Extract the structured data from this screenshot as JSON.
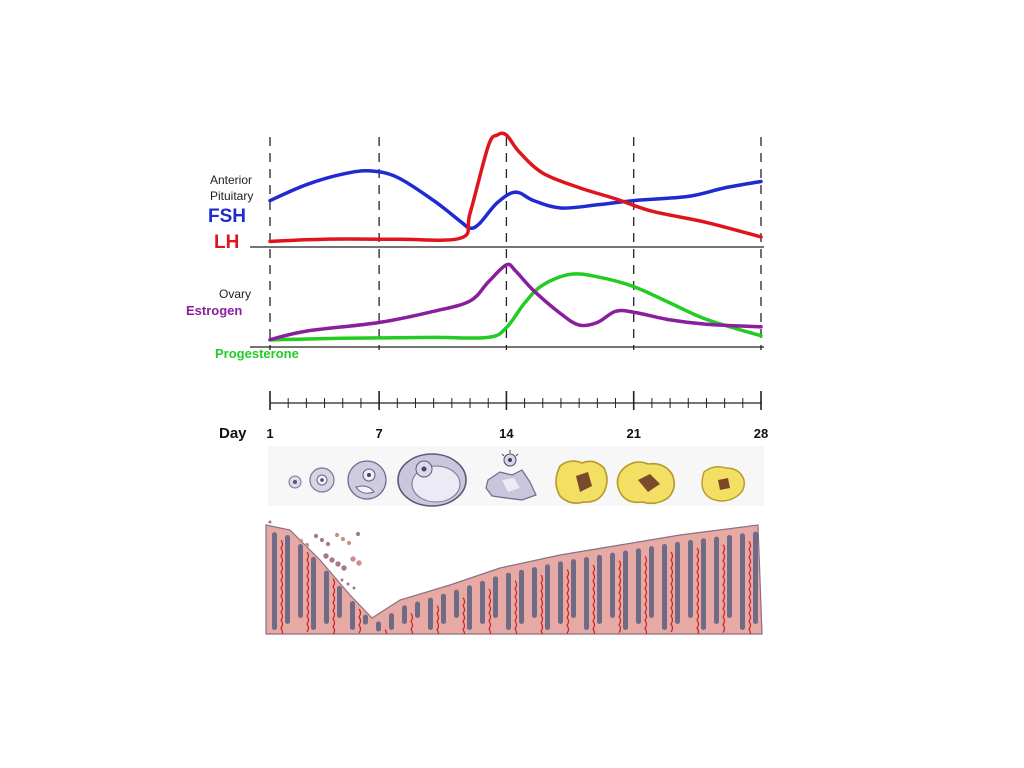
{
  "labels": {
    "pituitary_line1": "Anterior",
    "pituitary_line2": "Pituitary",
    "fsh": "FSH",
    "lh": "LH",
    "ovary": "Ovary",
    "estrogen": "Estrogen",
    "progesterone": "Progesterone",
    "day": "Day"
  },
  "colors": {
    "fsh": "#1f2bd0",
    "lh": "#e0141c",
    "estrogen": "#8a1f9e",
    "progesterone": "#22cc22",
    "follicle": "#cfcbe0",
    "corpus_luteum": "#f2df63",
    "endometrium": "#e6a9a3"
  },
  "days": {
    "ticks": [
      1,
      7,
      14,
      21,
      28
    ],
    "tick_labels": [
      "1",
      "7",
      "14",
      "21",
      "28"
    ],
    "range": [
      1,
      28
    ]
  },
  "hormones": {
    "fsh": [
      [
        1,
        0.4
      ],
      [
        3,
        0.55
      ],
      [
        5,
        0.65
      ],
      [
        6.5,
        0.68
      ],
      [
        8,
        0.62
      ],
      [
        10,
        0.4
      ],
      [
        11.5,
        0.2
      ],
      [
        12,
        0.14
      ],
      [
        12.5,
        0.18
      ],
      [
        13.5,
        0.38
      ],
      [
        14.5,
        0.48
      ],
      [
        15.5,
        0.4
      ],
      [
        17,
        0.33
      ],
      [
        19,
        0.36
      ],
      [
        21,
        0.4
      ],
      [
        24,
        0.44
      ],
      [
        26,
        0.52
      ],
      [
        28,
        0.58
      ]
    ],
    "lh": [
      [
        1,
        0.05
      ],
      [
        4,
        0.07
      ],
      [
        8,
        0.07
      ],
      [
        11.5,
        0.08
      ],
      [
        12,
        0.3
      ],
      [
        13,
        0.9
      ],
      [
        13.5,
        1.0
      ],
      [
        14,
        1.0
      ],
      [
        14.7,
        0.85
      ],
      [
        16,
        0.66
      ],
      [
        18,
        0.53
      ],
      [
        20,
        0.43
      ],
      [
        22,
        0.32
      ],
      [
        25,
        0.22
      ],
      [
        28,
        0.09
      ]
    ],
    "estrogen": [
      [
        1,
        0.05
      ],
      [
        3,
        0.15
      ],
      [
        7,
        0.25
      ],
      [
        10,
        0.38
      ],
      [
        12,
        0.5
      ],
      [
        13,
        0.72
      ],
      [
        14,
        0.92
      ],
      [
        14.5,
        0.85
      ],
      [
        15.5,
        0.62
      ],
      [
        17,
        0.35
      ],
      [
        18,
        0.22
      ],
      [
        19,
        0.25
      ],
      [
        20,
        0.38
      ],
      [
        21,
        0.37
      ],
      [
        23,
        0.28
      ],
      [
        25,
        0.23
      ],
      [
        28,
        0.2
      ]
    ],
    "progesterone": [
      [
        1,
        0.05
      ],
      [
        5,
        0.07
      ],
      [
        10,
        0.08
      ],
      [
        13,
        0.08
      ],
      [
        14,
        0.2
      ],
      [
        15,
        0.5
      ],
      [
        16,
        0.72
      ],
      [
        17.5,
        0.85
      ],
      [
        19,
        0.82
      ],
      [
        21,
        0.7
      ],
      [
        23,
        0.5
      ],
      [
        25,
        0.3
      ],
      [
        28,
        0.1
      ]
    ]
  },
  "follicle_icons": [
    "primordial-follicle-icon",
    "primary-follicle-icon",
    "secondary-follicle-icon",
    "graafian-follicle-icon",
    "ovulation-icon",
    "corpus-luteum-icon",
    "corpus-luteum-mature-icon",
    "corpus-albicans-icon"
  ]
}
